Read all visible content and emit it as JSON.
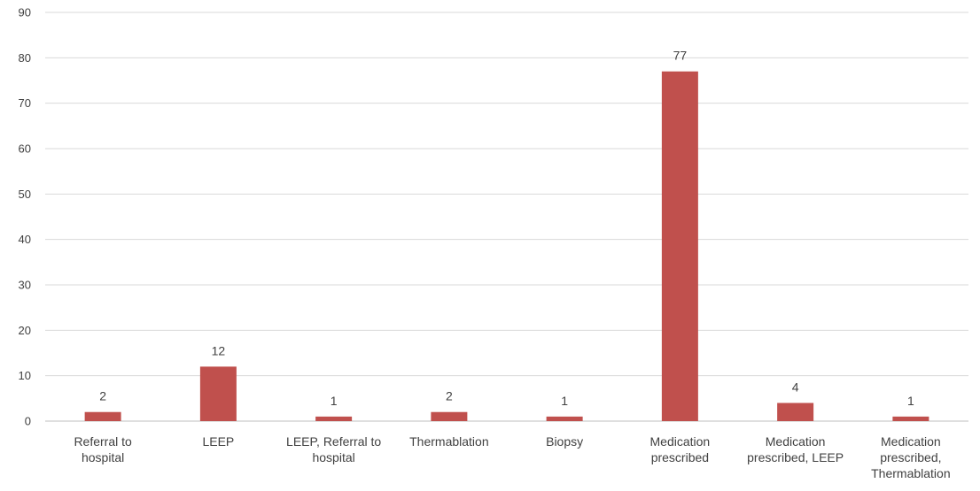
{
  "chart_data": {
    "type": "bar",
    "title": "",
    "xlabel": "",
    "ylabel": "",
    "ylim": [
      0,
      90
    ],
    "yticks": [
      0,
      10,
      20,
      30,
      40,
      50,
      60,
      70,
      80,
      90
    ],
    "grid": true,
    "legend": "none",
    "bar_color": "#C0504D",
    "categories": [
      [
        "Referral to",
        "hospital"
      ],
      [
        "LEEP"
      ],
      [
        "LEEP, Referral to",
        "hospital"
      ],
      [
        "Thermablation"
      ],
      [
        "Biopsy"
      ],
      [
        "Medication",
        "prescribed"
      ],
      [
        "Medication",
        "prescribed, LEEP"
      ],
      [
        "Medication",
        "prescribed,",
        "Thermablation"
      ]
    ],
    "values": [
      2,
      12,
      1,
      2,
      1,
      77,
      4,
      1
    ],
    "data_labels": [
      "2",
      "12",
      "1",
      "2",
      "1",
      "77",
      "4",
      "1"
    ]
  }
}
